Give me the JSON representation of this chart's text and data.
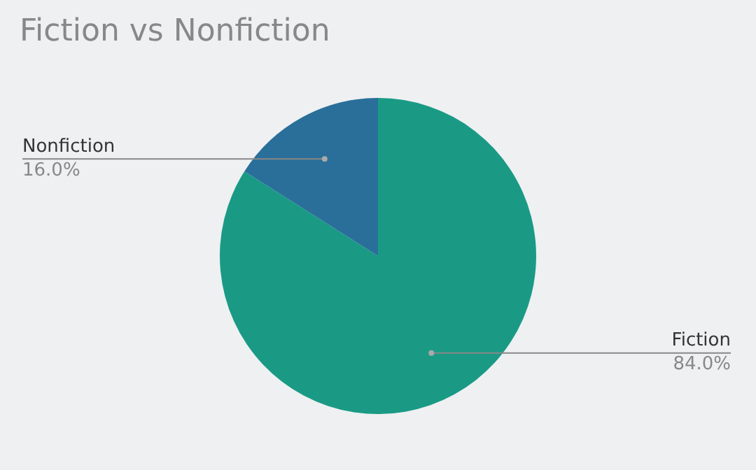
{
  "chart_data": {
    "type": "pie",
    "title": "Fiction vs Nonfiction",
    "categories": [
      "Fiction",
      "Nonfiction"
    ],
    "values": [
      84.0,
      16.0
    ],
    "value_labels": [
      "84.0%",
      "16.0%"
    ],
    "colors": [
      "#1a9a85",
      "#2a6f9a"
    ],
    "legend": false
  }
}
